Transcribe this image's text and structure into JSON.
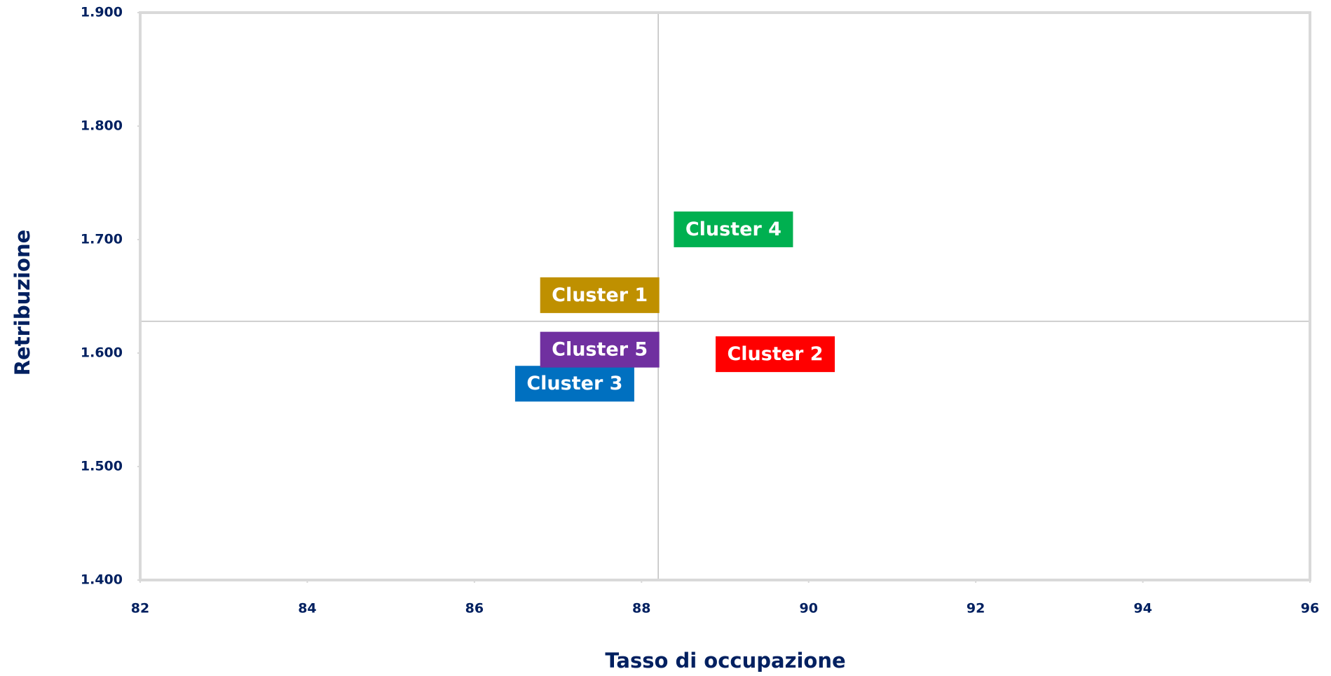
{
  "chart_data": {
    "type": "scatter",
    "x_label": "Tasso di occupazione",
    "y_label": "Retribuzione",
    "xlim": [
      82,
      96
    ],
    "xticks": [
      82,
      84,
      86,
      88,
      90,
      92,
      94,
      96
    ],
    "ylim": [
      1400,
      1900
    ],
    "yticks": [
      {
        "value": 1400,
        "label": "1.400"
      },
      {
        "value": 1500,
        "label": "1.500"
      },
      {
        "value": 1600,
        "label": "1.600"
      },
      {
        "value": 1700,
        "label": "1.700"
      },
      {
        "value": 1800,
        "label": "1.800"
      },
      {
        "value": 1900,
        "label": "1.900"
      }
    ],
    "reference_lines": {
      "x": 88.2,
      "y": 1628
    },
    "series": [
      {
        "name": "Cluster 1",
        "color": "#bf9000",
        "x": [
          87.5
        ],
        "values": [
          1651
        ]
      },
      {
        "name": "Cluster 2",
        "color": "#ff0000",
        "x": [
          89.6
        ],
        "values": [
          1599
        ]
      },
      {
        "name": "Cluster 3",
        "color": "#0070c0",
        "x": [
          87.2
        ],
        "values": [
          1573
        ]
      },
      {
        "name": "Cluster 4",
        "color": "#00b050",
        "x": [
          89.1
        ],
        "values": [
          1709
        ]
      },
      {
        "name": "Cluster 5",
        "color": "#7030a0",
        "x": [
          87.5
        ],
        "values": [
          1603
        ]
      }
    ]
  }
}
